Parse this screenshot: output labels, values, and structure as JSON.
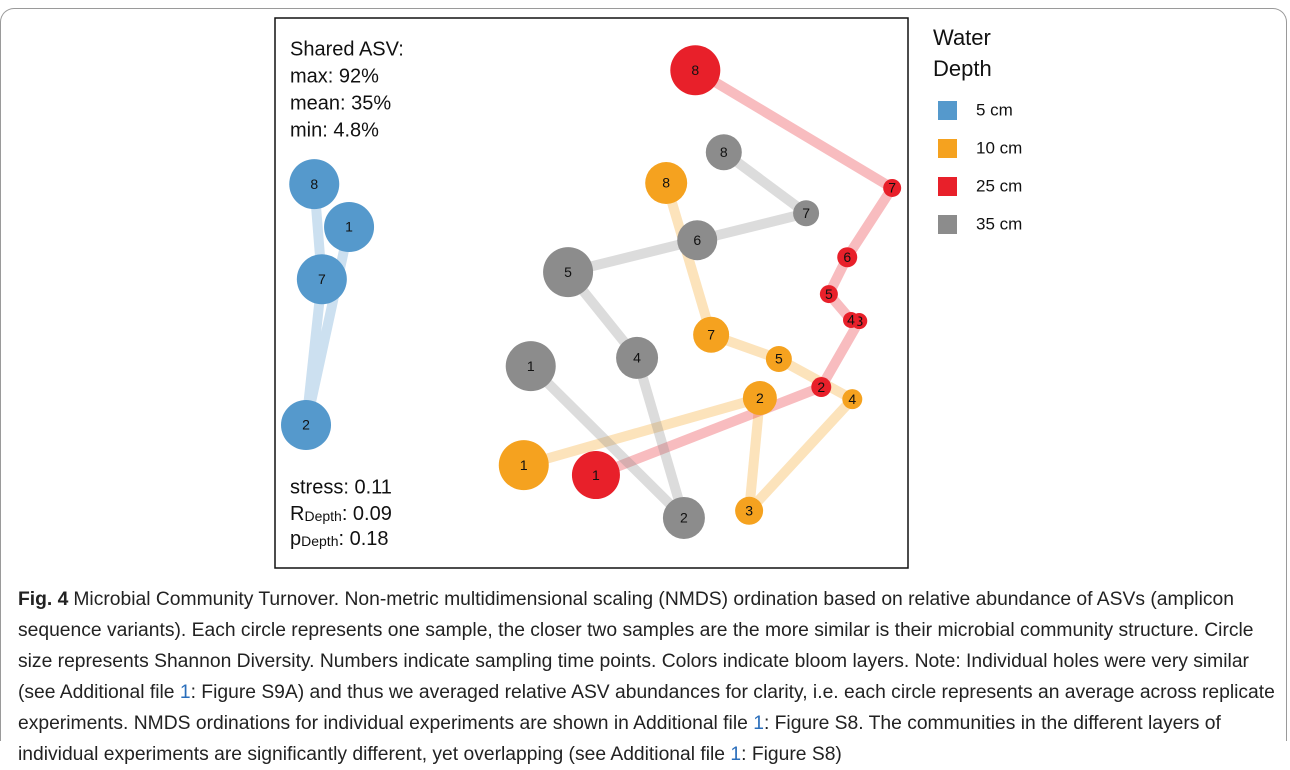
{
  "chart_data": {
    "type": "scatter",
    "legend_title": "Water Depth",
    "xlim": [
      0,
      100
    ],
    "ylim": [
      0,
      100
    ],
    "annotations": {
      "shared_title": "Shared ASV:",
      "max": "max: 92%",
      "mean": "mean: 35%",
      "min": "min: 4.8%",
      "stress": "stress: 0.11",
      "r_depth": {
        "symbol": "R",
        "subscript": "Depth",
        "text": ": 0.09"
      },
      "p_depth": {
        "symbol": "p",
        "subscript": "Depth",
        "text": ": 0.18"
      }
    },
    "series": [
      {
        "name": "5 cm",
        "color": "#5599cc",
        "labels": [
          1,
          2,
          7,
          8
        ],
        "x": [
          11.7,
          4.9,
          7.4,
          6.2
        ],
        "y": [
          62.0,
          26.0,
          52.5,
          69.8
        ],
        "sizes": [
          25,
          25,
          25,
          25
        ]
      },
      {
        "name": "10 cm",
        "color": "#f5a21f",
        "labels": [
          1,
          2,
          3,
          4,
          5,
          7,
          8
        ],
        "x": [
          39.3,
          76.6,
          74.9,
          91.2,
          79.6,
          68.9,
          61.8
        ],
        "y": [
          18.7,
          30.9,
          10.4,
          30.7,
          38.0,
          42.4,
          70.0
        ],
        "sizes": [
          25,
          17,
          14,
          10,
          13,
          18,
          21
        ]
      },
      {
        "name": "25 cm",
        "color": "#e8202a",
        "labels": [
          1,
          2,
          3,
          4,
          5,
          6,
          7,
          8
        ],
        "x": [
          50.7,
          86.3,
          92.3,
          91.0,
          87.5,
          90.4,
          97.5,
          66.4
        ],
        "y": [
          16.9,
          32.9,
          44.9,
          45.1,
          49.8,
          56.5,
          69.1,
          90.5
        ],
        "sizes": [
          24,
          10,
          8,
          8,
          9,
          10,
          9,
          25
        ]
      },
      {
        "name": "35 cm",
        "color": "#8c8c8c",
        "labels": [
          1,
          2,
          4,
          5,
          6,
          7,
          8
        ],
        "x": [
          40.4,
          64.6,
          57.2,
          46.3,
          66.7,
          83.9,
          70.9
        ],
        "y": [
          36.7,
          9.1,
          38.2,
          53.8,
          59.6,
          64.5,
          75.6
        ],
        "sizes": [
          25,
          21,
          21,
          25,
          20,
          13,
          18
        ]
      }
    ]
  },
  "caption": {
    "label": "Fig. 4",
    "segments": [
      {
        "text": "Microbial Community Turnover. Non-metric multidimensional scaling (NMDS) ordination based on relative abundance of ASVs (amplicon sequence variants). Each circle represents one sample, the closer two samples are the more similar is their microbial community structure. Circle size represents Shannon Diversity. Numbers indicate sampling time points. Colors indicate bloom layers. Note: Individual holes were very similar (see Additional file "
      },
      {
        "text": "1",
        "link": true
      },
      {
        "text": ": Figure S9A) and thus we averaged relative ASV abundances for clarity, i.e. each circle represents an average across replicate experiments. NMDS ordinations for individual experiments are shown in Additional file "
      },
      {
        "text": "1",
        "link": true
      },
      {
        "text": ": Figure S8. The communities in the different layers of individual experiments are significantly different, yet overlapping (see Additional file "
      },
      {
        "text": "1",
        "link": true
      },
      {
        "text": ": Figure S8)"
      }
    ]
  }
}
